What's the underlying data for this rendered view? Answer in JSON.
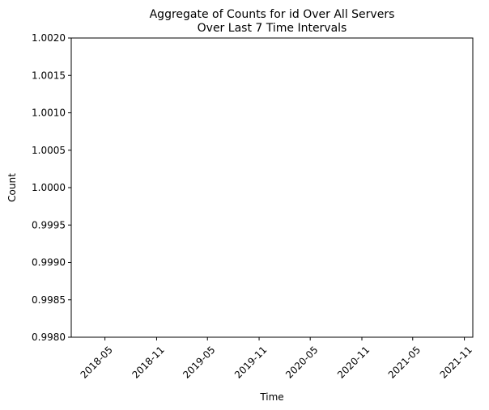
{
  "chart_data": {
    "type": "line",
    "title_lines": [
      "Aggregate of Counts for id Over All Servers",
      "Over Last 7 Time Intervals"
    ],
    "xlabel": "Time",
    "ylabel": "Count",
    "grid": false,
    "ylim": [
      0.998,
      1.002
    ],
    "y_ticks": [
      0.998,
      0.9985,
      0.999,
      0.9995,
      1.0,
      1.0005,
      1.001,
      1.0015,
      1.002
    ],
    "y_tick_labels": [
      "0.9980",
      "0.9985",
      "0.9990",
      "0.9995",
      "1.0000",
      "1.0005",
      "1.0010",
      "1.0015",
      "1.0020"
    ],
    "x_tick_labels": [
      "2018-05",
      "2018-11",
      "2019-05",
      "2019-11",
      "2020-05",
      "2020-11",
      "2021-05",
      "2021-11"
    ],
    "x_tick_dates": [
      "2018-05-01",
      "2018-11-01",
      "2019-05-01",
      "2019-11-01",
      "2020-05-01",
      "2020-11-01",
      "2021-05-01",
      "2021-11-01"
    ],
    "xlim": [
      "2018-01-01",
      "2021-12-01"
    ],
    "series": []
  }
}
